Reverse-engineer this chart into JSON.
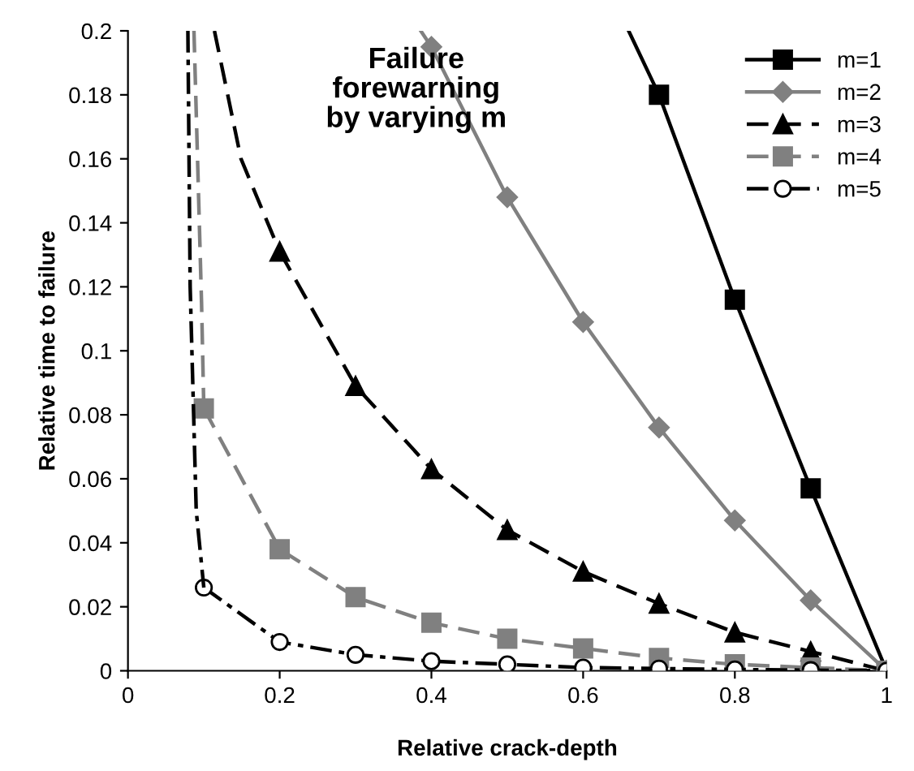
{
  "chart_data": {
    "type": "line",
    "xlabel": "Relative crack-depth",
    "ylabel": "Relative time to failure",
    "annotations": [
      "Failure\nforewarning\nby varying m"
    ],
    "xlim": [
      0,
      1
    ],
    "ylim": [
      0,
      0.2
    ],
    "xticks": [
      0,
      0.2,
      0.4,
      0.6,
      0.8,
      1
    ],
    "yticks": [
      0,
      0.02,
      0.04,
      0.06,
      0.08,
      0.1,
      0.12,
      0.14,
      0.16,
      0.18,
      0.2
    ],
    "grid": false,
    "legend": "top right",
    "series": [
      {
        "name": "m=1",
        "color": "#000000",
        "marker": "square",
        "line_style": "solid",
        "x": [
          0.7,
          0.8,
          0.9,
          1
        ],
        "values": [
          0.18,
          0.116,
          0.057,
          0
        ]
      },
      {
        "name": "m=2",
        "color": "#808080",
        "marker": "diamond",
        "line_style": "solid",
        "x": [
          0.4,
          0.5,
          0.6,
          0.7,
          0.8,
          0.9,
          1
        ],
        "values": [
          0.195,
          0.148,
          0.109,
          0.076,
          0.047,
          0.022,
          0
        ]
      },
      {
        "name": "m=3",
        "color": "#000000",
        "marker": "triangle",
        "line_style": "dashed",
        "x": [
          0.2,
          0.3,
          0.4,
          0.5,
          0.6,
          0.7,
          0.8,
          0.9,
          1
        ],
        "values": [
          0.131,
          0.089,
          0.063,
          0.044,
          0.031,
          0.021,
          0.012,
          0.006,
          0
        ]
      },
      {
        "name": "m=4",
        "color": "#808080",
        "marker": "square",
        "line_style": "dashed",
        "x": [
          0.1,
          0.2,
          0.3,
          0.4,
          0.5,
          0.6,
          0.7,
          0.8,
          0.9,
          1
        ],
        "values": [
          0.082,
          0.038,
          0.023,
          0.015,
          0.01,
          0.007,
          0.004,
          0.002,
          0.001,
          0
        ]
      },
      {
        "name": "m=5",
        "color": "#000000",
        "marker": "circle",
        "line_style": "dashdot",
        "x": [
          0.1,
          0.2,
          0.3,
          0.4,
          0.5,
          0.6,
          0.7,
          0.8,
          0.9,
          1
        ],
        "values": [
          0.026,
          0.009,
          0.005,
          0.003,
          0.002,
          0.001,
          0.0007,
          0.0004,
          0.0002,
          0
        ]
      },
      {
        "color": "#000000",
        "marker": "none",
        "line_style": "solid",
        "x": [
          0.66,
          0.7
        ],
        "values": [
          0.2,
          0.18
        ]
      },
      {
        "color": "#808080",
        "marker": "none",
        "line_style": "solid",
        "x": [
          0.386,
          0.4
        ],
        "values": [
          0.2,
          0.195
        ]
      },
      {
        "color": "#000000",
        "marker": "none",
        "line_style": "dashed",
        "x": [
          0.114,
          0.149,
          0.2
        ],
        "values": [
          0.2,
          0.16,
          0.131
        ]
      },
      {
        "color": "#808080",
        "marker": "none",
        "line_style": "dashed",
        "x": [
          0.087,
          0.097,
          0.1
        ],
        "values": [
          0.2,
          0.115,
          0.082
        ]
      },
      {
        "color": "#000000",
        "marker": "none",
        "line_style": "dashdot",
        "x": [
          0.079,
          0.082,
          0.09,
          0.1
        ],
        "values": [
          0.2,
          0.12,
          0.05,
          0.026
        ]
      }
    ]
  }
}
